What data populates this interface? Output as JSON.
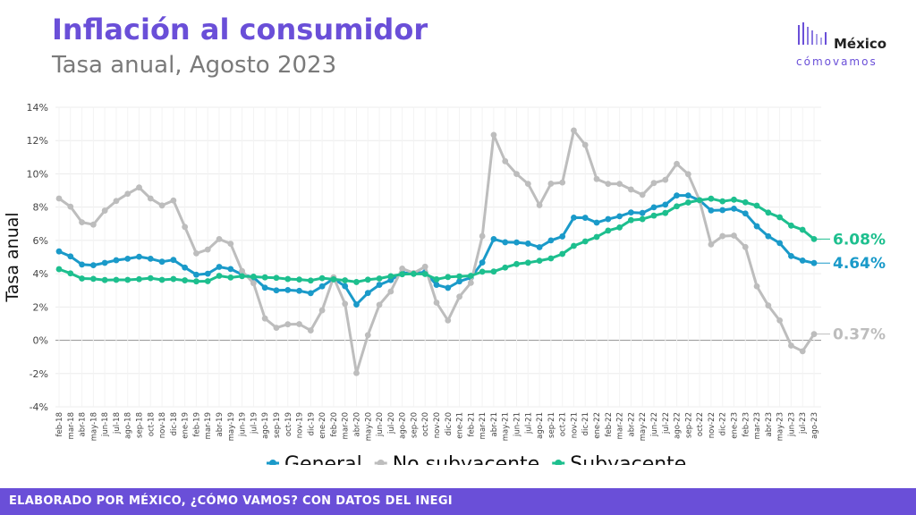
{
  "header": {
    "title": "Inflación al consumidor",
    "subtitle": "Tasa anual, Agosto 2023"
  },
  "logo": {
    "line1": "México",
    "line2": "cómovamos"
  },
  "footer": {
    "text": "ELABORADO POR MÉXICO, ¿CÓMO VAMOS? CON DATOS DEL INEGI"
  },
  "colors": {
    "brand": "#6a4fd8",
    "general": "#1a9ac9",
    "no_subyacente": "#bdbdbd",
    "subyacente": "#1dbf8e"
  },
  "chart_data": {
    "type": "line",
    "title": "",
    "xlabel": "",
    "ylabel": "Tasa anual",
    "ylim": [
      -4,
      14
    ],
    "yticks": [
      "-4%",
      "-2%",
      "0%",
      "2%",
      "4%",
      "6%",
      "8%",
      "10%",
      "12%",
      "14%"
    ],
    "grid": true,
    "legend_position": "bottom",
    "categories": [
      "feb-18",
      "mar-18",
      "abr-18",
      "may-18",
      "jun-18",
      "jul-18",
      "ago-18",
      "sep-18",
      "oct-18",
      "nov-18",
      "dic-18",
      "ene-19",
      "feb-19",
      "mar-19",
      "abr-19",
      "may-19",
      "jun-19",
      "jul-19",
      "ago-19",
      "sep-19",
      "oct-19",
      "nov-19",
      "dic-19",
      "ene-20",
      "feb-20",
      "mar-20",
      "abr-20",
      "may-20",
      "jun-20",
      "jul-20",
      "ago-20",
      "sep-20",
      "oct-20",
      "nov-20",
      "dic-20",
      "ene-21",
      "feb-21",
      "mar-21",
      "abr-21",
      "may-21",
      "jun-21",
      "jul-21",
      "ago-21",
      "sep-21",
      "oct-21",
      "nov-21",
      "dic-21",
      "ene-22",
      "feb-22",
      "mar-22",
      "abr-22",
      "may-22",
      "jun-22",
      "jul-22",
      "ago-22",
      "sep-22",
      "oct-22",
      "nov-22",
      "dic-22",
      "ene-23",
      "feb-23",
      "mar-23",
      "abr-23",
      "may-23",
      "jun-23",
      "jul-23",
      "ago-23"
    ],
    "series": [
      {
        "name": "General",
        "end_label": "4.64%",
        "values": [
          5.34,
          5.04,
          4.55,
          4.51,
          4.65,
          4.81,
          4.9,
          5.02,
          4.9,
          4.72,
          4.83,
          4.37,
          3.94,
          4.0,
          4.41,
          4.28,
          3.95,
          3.78,
          3.16,
          3.0,
          3.02,
          2.97,
          2.83,
          3.24,
          3.7,
          3.25,
          2.15,
          2.84,
          3.33,
          3.62,
          4.05,
          4.01,
          4.09,
          3.33,
          3.15,
          3.54,
          3.76,
          4.67,
          6.08,
          5.89,
          5.88,
          5.81,
          5.59,
          6.0,
          6.24,
          7.37,
          7.36,
          7.07,
          7.28,
          7.45,
          7.68,
          7.65,
          7.99,
          8.15,
          8.7,
          8.7,
          8.41,
          7.8,
          7.82,
          7.91,
          7.62,
          6.85,
          6.25,
          5.84,
          5.06,
          4.79,
          4.64
        ]
      },
      {
        "name": "No subyacente",
        "end_label": "0.37%",
        "values": [
          8.52,
          8.03,
          7.09,
          6.95,
          7.79,
          8.37,
          8.8,
          9.18,
          8.52,
          8.1,
          8.4,
          6.81,
          5.22,
          5.45,
          6.08,
          5.8,
          4.16,
          3.43,
          1.31,
          0.75,
          0.96,
          0.97,
          0.59,
          1.8,
          3.78,
          2.19,
          -1.97,
          0.31,
          2.13,
          2.93,
          4.31,
          4.04,
          4.42,
          2.26,
          1.19,
          2.62,
          3.45,
          6.26,
          12.34,
          10.76,
          9.99,
          9.4,
          8.12,
          9.41,
          9.48,
          12.61,
          11.74,
          9.69,
          9.4,
          9.4,
          9.06,
          8.74,
          9.45,
          9.64,
          10.6,
          9.98,
          8.4,
          5.76,
          6.26,
          6.29,
          5.6,
          3.24,
          2.09,
          1.19,
          -0.32,
          -0.66,
          0.37
        ]
      },
      {
        "name": "Subyacente",
        "end_label": "6.08%",
        "values": [
          4.27,
          4.02,
          3.71,
          3.69,
          3.62,
          3.63,
          3.63,
          3.67,
          3.73,
          3.63,
          3.68,
          3.6,
          3.54,
          3.55,
          3.87,
          3.77,
          3.85,
          3.82,
          3.78,
          3.75,
          3.68,
          3.65,
          3.59,
          3.73,
          3.66,
          3.6,
          3.5,
          3.64,
          3.71,
          3.85,
          3.97,
          3.99,
          3.98,
          3.66,
          3.8,
          3.84,
          3.87,
          4.12,
          4.13,
          4.37,
          4.58,
          4.66,
          4.78,
          4.92,
          5.19,
          5.67,
          5.94,
          6.21,
          6.59,
          6.78,
          7.22,
          7.28,
          7.49,
          7.65,
          8.05,
          8.28,
          8.42,
          8.51,
          8.35,
          8.45,
          8.29,
          8.09,
          7.67,
          7.39,
          6.89,
          6.64,
          6.08
        ]
      }
    ]
  }
}
